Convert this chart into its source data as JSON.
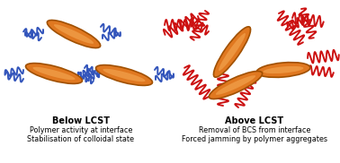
{
  "left_label_line1": "Below LCST",
  "left_label_line2": "Polymer activity at interface",
  "left_label_line3": "Stabilisation of colloidal state",
  "right_label_line1": "Above LCST",
  "right_label_line2": "Removal of BCS from interface",
  "right_label_line3": "Forced jamming by polymer aggregates",
  "bg_color": "#ffffff",
  "platelet_face_color": "#E07820",
  "platelet_highlight_color": "#F5AA55",
  "platelet_edge_color": "#A05000",
  "blue_chain_color": "#3355BB",
  "red_chain_color": "#CC1111",
  "label_fontsize": 5.8,
  "label_bold_fontsize": 7.0,
  "fig_width": 3.78,
  "fig_height": 1.82,
  "dpi": 100
}
